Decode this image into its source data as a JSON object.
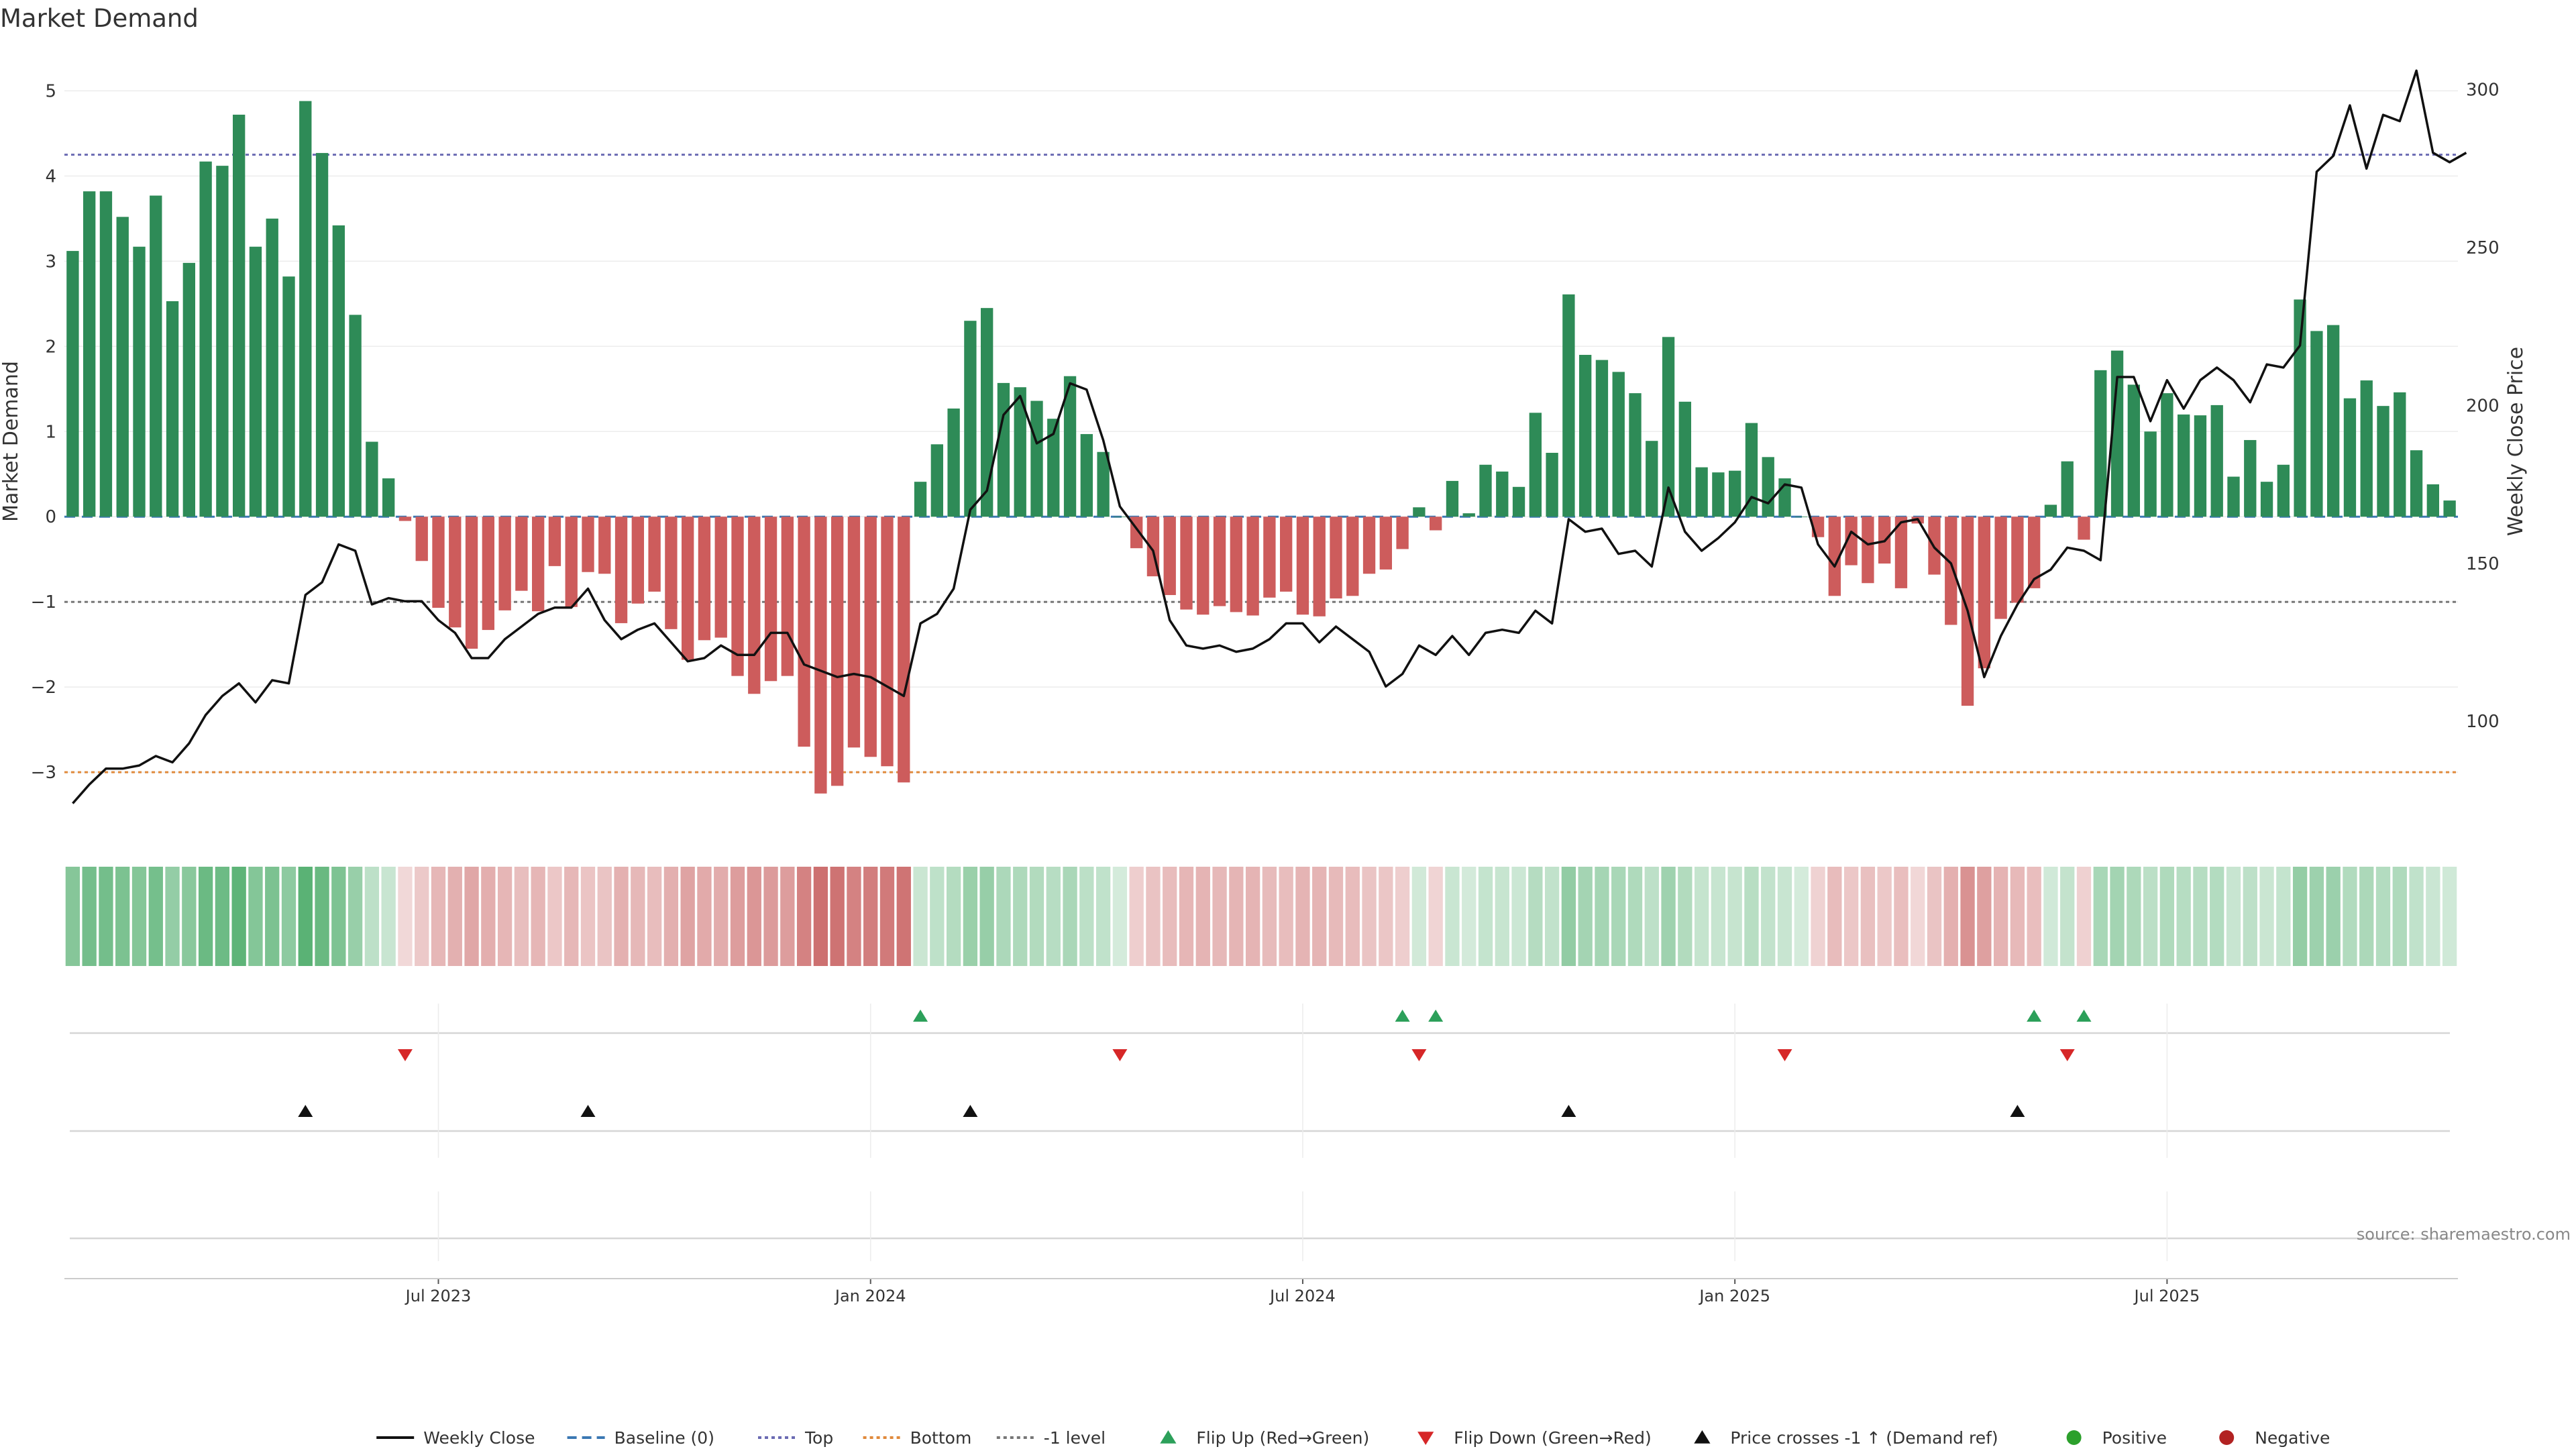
{
  "chart_data": {
    "type": "bar",
    "title": "Market Demand",
    "ylabel": "Market Demand",
    "y2label": "Weekly Close Price",
    "ylim": [
      -3.7,
      5.2
    ],
    "y2lim": [
      65,
      305
    ],
    "yticks": [
      -3,
      -2,
      -1,
      0,
      1,
      2,
      3,
      4,
      5
    ],
    "y2ticks": [
      100,
      150,
      200,
      250,
      300
    ],
    "yticklabels": [
      "−3",
      "−2",
      "−1",
      "0",
      "1",
      "2",
      "3",
      "4",
      "5"
    ],
    "y2ticklabels": [
      "100",
      "150",
      "200",
      "250",
      "300"
    ],
    "reference_lines": {
      "top": 4.25,
      "bottom": -3.0,
      "minus_one": -1.0,
      "baseline": 0
    },
    "x_ticks": [
      {
        "label": "Jul 2023",
        "week": 22
      },
      {
        "label": "Jan 2024",
        "week": 48
      },
      {
        "label": "Jul 2024",
        "week": 74
      },
      {
        "label": "Jan 2025",
        "week": 100
      },
      {
        "label": "Jul 2025",
        "week": 126
      }
    ],
    "series": [
      {
        "name": "Market Demand",
        "kind": "bar",
        "values": [
          3.12,
          3.82,
          3.82,
          3.52,
          3.17,
          3.77,
          2.53,
          2.98,
          4.17,
          4.12,
          4.72,
          3.17,
          3.5,
          2.82,
          4.88,
          4.27,
          3.42,
          2.37,
          0.88,
          0.45,
          -0.05,
          -0.52,
          -1.07,
          -1.3,
          -1.55,
          -1.33,
          -1.1,
          -0.87,
          -1.11,
          -0.58,
          -1.06,
          -0.65,
          -0.67,
          -1.25,
          -1.02,
          -0.88,
          -1.32,
          -1.68,
          -1.45,
          -1.42,
          -1.87,
          -2.08,
          -1.93,
          -1.87,
          -2.7,
          -3.25,
          -3.16,
          -2.71,
          -2.82,
          -2.93,
          -3.12,
          0.41,
          0.85,
          1.27,
          2.3,
          2.45,
          1.57,
          1.52,
          1.36,
          1.15,
          1.65,
          0.97,
          0.76,
          0.0,
          -0.37,
          -0.7,
          -0.92,
          -1.09,
          -1.15,
          -1.05,
          -1.12,
          -1.16,
          -0.95,
          -0.88,
          -1.15,
          -1.17,
          -0.96,
          -0.93,
          -0.67,
          -0.62,
          -0.38,
          0.11,
          -0.16,
          0.42,
          0.04,
          0.61,
          0.53,
          0.35,
          1.22,
          0.75,
          2.61,
          1.9,
          1.84,
          1.7,
          1.45,
          0.89,
          2.11,
          1.35,
          0.58,
          0.52,
          0.54,
          1.1,
          0.7,
          0.45,
          0.0,
          -0.24,
          -0.93,
          -0.57,
          -0.78,
          -0.55,
          -0.84,
          -0.08,
          -0.68,
          -1.27,
          -2.22,
          -1.78,
          -1.2,
          -1.01,
          -0.84,
          0.14,
          0.65,
          -0.27,
          1.72,
          1.95,
          1.55,
          1.0,
          1.45,
          1.2,
          1.19,
          1.31,
          0.47,
          0.9,
          0.41,
          0.61,
          2.55,
          2.18,
          2.25,
          1.39,
          1.6,
          1.3,
          1.46,
          0.78,
          0.38,
          0.19
        ]
      },
      {
        "name": "Weekly Close",
        "kind": "line",
        "values": [
          74,
          80,
          85,
          85,
          86,
          89,
          87,
          93,
          102,
          108,
          112,
          106,
          113,
          112,
          140,
          144,
          156,
          154,
          137,
          139,
          138,
          138,
          132,
          128,
          120,
          120,
          126,
          130,
          134,
          136,
          136,
          142,
          132,
          126,
          129,
          131,
          125,
          119,
          120,
          124,
          121,
          121,
          128,
          128,
          118,
          116,
          114,
          115,
          114,
          111,
          108,
          131,
          134,
          142,
          167,
          173,
          197,
          203,
          188,
          191,
          207,
          205,
          189,
          168,
          161,
          154,
          132,
          124,
          123,
          124,
          122,
          123,
          126,
          131,
          131,
          125,
          130,
          126,
          122,
          111,
          115,
          124,
          121,
          127,
          121,
          128,
          129,
          128,
          135,
          131,
          164,
          160,
          161,
          153,
          154,
          149,
          174,
          160,
          154,
          158,
          163,
          171,
          169,
          175,
          174,
          156,
          149,
          160,
          156,
          157,
          163,
          164,
          155,
          150,
          135,
          114,
          127,
          137,
          145,
          148,
          155,
          154,
          151,
          209,
          209,
          195,
          208,
          199,
          208,
          212,
          208,
          201,
          213,
          212,
          219,
          274,
          279,
          295,
          275,
          292,
          290,
          306,
          280,
          277,
          280
        ]
      },
      {
        "name": "Baseline (0)",
        "kind": "reference"
      },
      {
        "name": "Top",
        "kind": "reference"
      },
      {
        "name": "Bottom",
        "kind": "reference"
      },
      {
        "name": "-1 level",
        "kind": "reference"
      }
    ],
    "flip_up_weeks": [
      51,
      80,
      82,
      118,
      121
    ],
    "flip_down_weeks": [
      20,
      63,
      81,
      103,
      120
    ],
    "price_cross_weeks": [
      14,
      31,
      54,
      90,
      117
    ],
    "legend_position": "bottom",
    "legend": [
      {
        "label": "Weekly Close",
        "marker": "line-solid",
        "color": "#111111"
      },
      {
        "label": "Baseline (0)",
        "marker": "line-dash",
        "color": "#3b78b3"
      },
      {
        "label": "Top",
        "marker": "line-dot",
        "color": "#6b6bb3"
      },
      {
        "label": "Bottom",
        "marker": "line-dot",
        "color": "#e08a3c"
      },
      {
        "label": "-1 level",
        "marker": "line-dot",
        "color": "#777777"
      },
      {
        "label": "Flip Up (Red→Green)",
        "marker": "triangle-up",
        "color": "#2ca05a"
      },
      {
        "label": "Flip Down (Green→Red)",
        "marker": "triangle-down",
        "color": "#d62728"
      },
      {
        "label": "Price crosses -1 ↑ (Demand ref)",
        "marker": "triangle-up",
        "color": "#111111"
      },
      {
        "label": "Positive",
        "marker": "circle",
        "color": "#2ca02c"
      },
      {
        "label": "Negative",
        "marker": "circle",
        "color": "#b22222"
      }
    ],
    "source": "source: sharemaestro.com"
  },
  "colors": {
    "positive": "#2e8b57",
    "negative": "#cd5c5c",
    "price": "#111111",
    "baseline": "#3b78b3",
    "top": "#6b6bb3",
    "bottom": "#e08a3c",
    "minus_one": "#777777",
    "flip_up": "#2ca05a",
    "flip_down": "#d62728",
    "grid": "#ececec",
    "axis_text": "#333333",
    "source_text": "#888888"
  }
}
